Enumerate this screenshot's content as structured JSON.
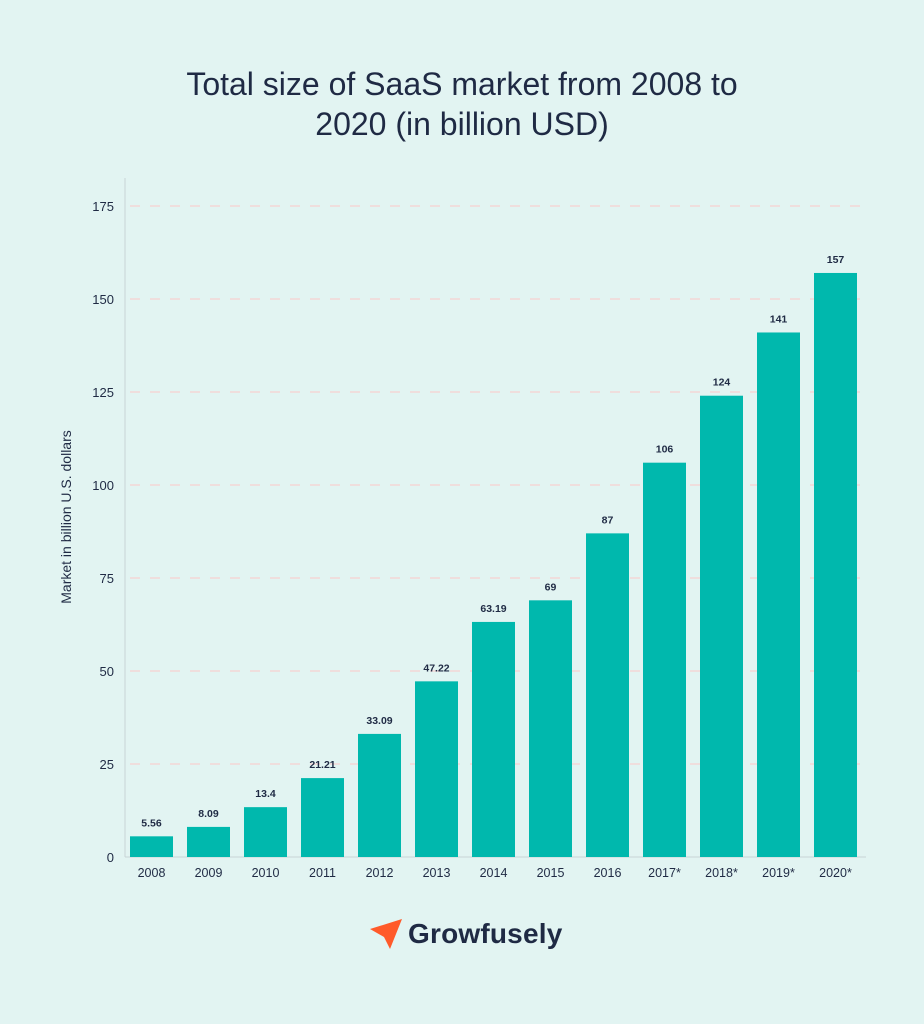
{
  "title": {
    "line1": "Total size of SaaS market from 2008 to",
    "line2": "2020 (in billion USD)"
  },
  "brand": {
    "name": "Growfusely",
    "accent": "#ff5a2a"
  },
  "colors": {
    "background": "#e2f4f2",
    "bar": "#00b8ad",
    "text": "#1f2a44",
    "grid": "#f3d6d6"
  },
  "chart_data": {
    "type": "bar",
    "title": "Total size of SaaS market from 2008 to 2020 (in billion USD)",
    "xlabel": "",
    "ylabel": "Market in billion U.S. dollars",
    "categories": [
      "2008",
      "2009",
      "2010",
      "2011",
      "2012",
      "2013",
      "2014",
      "2015",
      "2016",
      "2017*",
      "2018*",
      "2019*",
      "2020*"
    ],
    "values": [
      5.56,
      8.09,
      13.4,
      21.21,
      33.09,
      47.22,
      63.19,
      69,
      87,
      106,
      124,
      141,
      157
    ],
    "value_labels": [
      "5.56",
      "8.09",
      "13.4",
      "21.21",
      "33.09",
      "47.22",
      "63.19",
      "69",
      "87",
      "106",
      "124",
      "141",
      "157"
    ],
    "ylim": [
      0,
      175
    ],
    "yticks": [
      0,
      25,
      50,
      75,
      100,
      125,
      150,
      175
    ],
    "grid": true,
    "legend": "none"
  }
}
